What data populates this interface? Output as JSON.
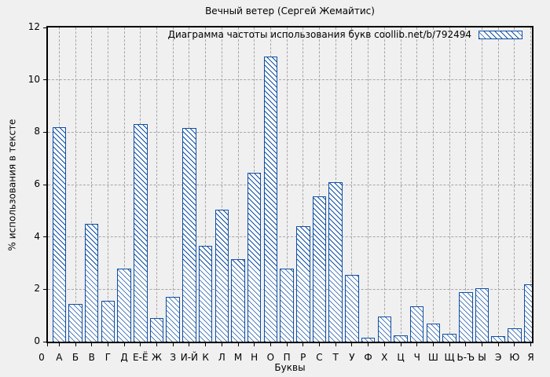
{
  "title": "Вечный ветер (Сергей Жемайтис)",
  "legend": {
    "label": "Диаграмма частоты использования букв coollib.net/b/792494",
    "swatch_icon": "hatched-bar-sample"
  },
  "colors": {
    "accent": "#0e4ea3",
    "grid": "#a6a6a6",
    "background": "#f0f0f0",
    "axis": "#000000"
  },
  "chart_data": {
    "type": "bar",
    "title": "Вечный ветер (Сергей Жемайтис)",
    "xlabel": "Буквы",
    "ylabel": "% использования в тексте",
    "ylim": [
      0,
      12
    ],
    "yticks": [
      0,
      2,
      4,
      6,
      8,
      10,
      12
    ],
    "x_origin_label": "0",
    "grid": true,
    "legend_position": "top-right-inside",
    "categories": [
      "А",
      "Б",
      "В",
      "Г",
      "Д",
      "Е-Ё",
      "Ж",
      "З",
      "И-Й",
      "К",
      "Л",
      "М",
      "Н",
      "О",
      "П",
      "Р",
      "С",
      "Т",
      "У",
      "Ф",
      "Х",
      "Ц",
      "Ч",
      "Ш",
      "Щ",
      "Ь-Ъ",
      "Ы",
      "Э",
      "Ю",
      "Я"
    ],
    "values": [
      8.2,
      1.45,
      4.5,
      1.55,
      2.8,
      8.3,
      0.9,
      1.7,
      8.15,
      3.65,
      5.05,
      3.15,
      6.45,
      10.9,
      2.8,
      4.4,
      5.55,
      6.1,
      2.55,
      0.15,
      0.95,
      0.25,
      1.35,
      0.7,
      0.3,
      1.9,
      2.05,
      0.2,
      0.5,
      2.2
    ]
  }
}
